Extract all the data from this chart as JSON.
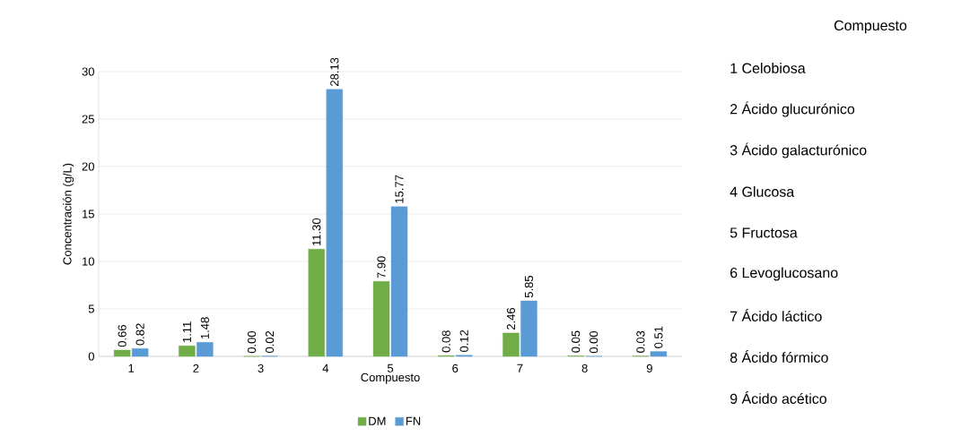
{
  "chart_data": {
    "type": "bar",
    "xlabel": "Compuesto",
    "ylabel": "Concentración (g/L)",
    "categories": [
      "1",
      "2",
      "3",
      "4",
      "5",
      "6",
      "7",
      "8",
      "9"
    ],
    "series": [
      {
        "name": "DM",
        "color": "#70ad47",
        "values": [
          0.66,
          1.11,
          0.0,
          11.3,
          7.9,
          0.08,
          2.46,
          0.05,
          0.03
        ],
        "value_labels": [
          "0.66",
          "1.11",
          "0.00",
          "11.30",
          "7.90",
          "0.08",
          "2.46",
          "0.05",
          "0.03"
        ]
      },
      {
        "name": "FN",
        "color": "#5b9bd5",
        "values": [
          0.82,
          1.48,
          0.02,
          28.13,
          15.77,
          0.12,
          5.85,
          0.0,
          0.51
        ],
        "value_labels": [
          "0.82",
          "1.48",
          "0.02",
          "28.13",
          "15.77",
          "0.12",
          "5.85",
          "0.00",
          "0.51"
        ]
      }
    ],
    "ylim": [
      0,
      30
    ],
    "yticks": [
      0,
      5,
      10,
      15,
      20,
      25,
      30
    ],
    "grid": "y",
    "legend": "bottom",
    "annotations": [
      "Compuesto",
      "1 Celobiosa",
      "2 Ácido glucurónico",
      "3 Ácido galacturónico",
      "4 Glucosa",
      "5 Fructosa",
      "6 Levoglucosano",
      "7 Ácido láctico",
      "8 Ácido fórmico",
      "9 Ácido acético"
    ]
  }
}
